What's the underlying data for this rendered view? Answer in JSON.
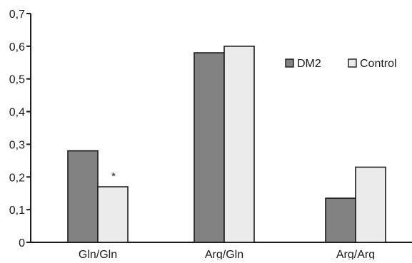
{
  "chart_data": {
    "type": "bar",
    "categories": [
      "Gln/Gln",
      "Arg/Gln",
      "Arg/Arg"
    ],
    "series": [
      {
        "name": "DM2",
        "values": [
          0.28,
          0.58,
          0.135
        ],
        "color": "#828282"
      },
      {
        "name": "Control",
        "values": [
          0.17,
          0.6,
          0.23
        ],
        "color": "#ebebeb"
      }
    ],
    "title": "",
    "xlabel": "",
    "ylabel": "",
    "ylim": [
      0,
      0.7
    ],
    "yticks": [
      0,
      0.1,
      0.2,
      0.3,
      0.4,
      0.5,
      0.6,
      0.7
    ],
    "ytick_labels": [
      "0",
      "0,1",
      "0,2",
      "0,3",
      "0,4",
      "0,5",
      "0,6",
      "0,7"
    ],
    "grid": false,
    "legend": {
      "position": "right",
      "entries": [
        "DM2",
        "Control"
      ]
    },
    "annotations": [
      {
        "text": "*",
        "category": "Gln/Gln",
        "series": "Control"
      }
    ],
    "bar_edge_color": "#1a1a1a"
  }
}
